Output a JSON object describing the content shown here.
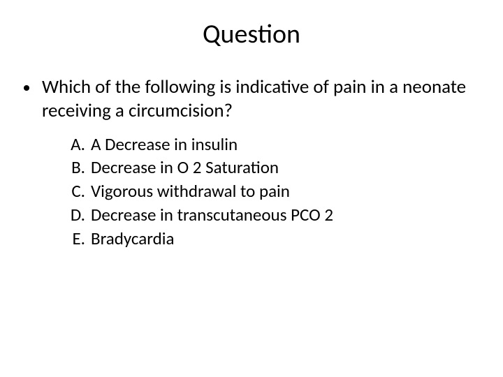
{
  "title": "Question",
  "question": "Which of the following is indicative of pain in a neonate receiving a circumcision?",
  "options": [
    {
      "letter": "A.",
      "text": "A Decrease in insulin"
    },
    {
      "letter": "B.",
      "text": "Decrease in O 2 Saturation"
    },
    {
      "letter": "C.",
      "text": "Vigorous withdrawal to pain"
    },
    {
      "letter": "D.",
      "text": "Decrease in transcutaneous PCO 2"
    },
    {
      "letter": "E.",
      "text": "Bradycardia"
    }
  ],
  "style": {
    "background_color": "#ffffff",
    "text_color": "#000000",
    "title_fontsize": 38,
    "body_fontsize": 27,
    "options_fontsize": 25,
    "font_family": "Calibri"
  }
}
